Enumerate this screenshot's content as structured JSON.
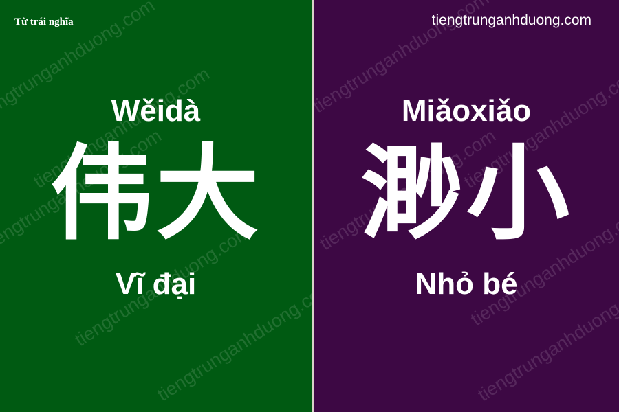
{
  "header": {
    "label": "Từ trái nghĩa",
    "website": "tiengtrunganhduong.com"
  },
  "watermark": "tiengtrunganhduong.com",
  "colors": {
    "left_panel": "#005a12",
    "right_panel": "#3d0844",
    "text": "#ffffff"
  },
  "left": {
    "pinyin": "Wěidà",
    "hanzi": "伟大",
    "meaning": "Vĩ đại"
  },
  "right": {
    "pinyin": "Miǎoxiǎo",
    "hanzi": "渺小",
    "meaning": "Nhỏ bé"
  }
}
